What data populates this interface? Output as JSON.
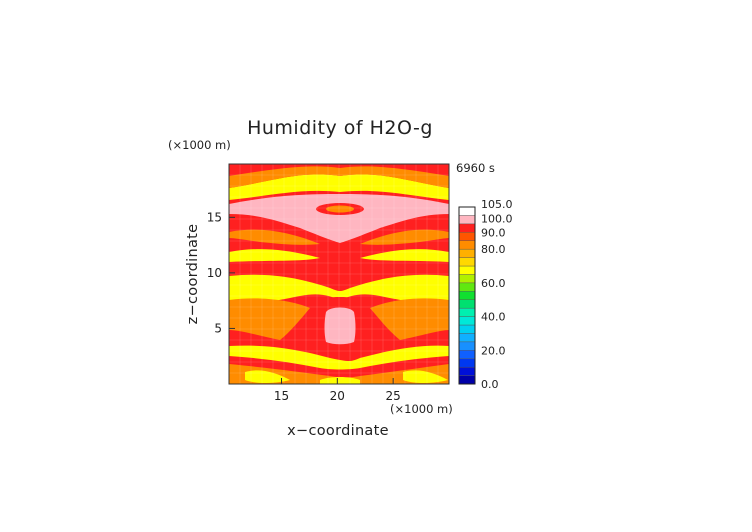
{
  "chart_data": {
    "type": "heatmap",
    "title": "Humidity of H2O-g",
    "time_label": "6960 s",
    "x_unit": "(×1000 m)",
    "z_unit": "(×1000 m)",
    "xlabel": "x−coordinate",
    "ylabel": "z−coordinate",
    "xlim": [
      10.3,
      30.0
    ],
    "ylim": [
      0.0,
      19.8
    ],
    "x_ticks": [
      15,
      20,
      25
    ],
    "x_tick_labels": [
      "15",
      "20",
      "25"
    ],
    "y_ticks": [
      5,
      10,
      15
    ],
    "y_tick_labels": [
      "5",
      "10",
      "15"
    ],
    "grid": true,
    "colorbar": {
      "range": [
        0.0,
        105.0
      ],
      "tick_values": [
        0,
        20,
        40,
        60,
        80,
        90,
        100,
        105
      ],
      "tick_labels": [
        "0.0",
        "20.0",
        "40.0",
        "60.0",
        "80.0",
        "90.0",
        "100.0",
        "105.0"
      ],
      "levels": [
        0,
        5,
        10,
        15,
        20,
        25,
        30,
        35,
        40,
        45,
        50,
        55,
        60,
        65,
        70,
        75,
        80,
        85,
        90,
        95,
        100,
        105
      ],
      "colors": [
        "#0000a8",
        "#0010d8",
        "#0038f0",
        "#1060ff",
        "#1890ff",
        "#10b0ff",
        "#00d0f0",
        "#00e8d8",
        "#00f0b0",
        "#00e070",
        "#10e030",
        "#60e810",
        "#b0f000",
        "#ffff00",
        "#ffd800",
        "#ffb000",
        "#ff8c00",
        "#ff5500",
        "#ff2020",
        "#ffb6c1",
        "#ffffff"
      ]
    },
    "series": [
      {
        "z_levels": [
          19.5,
          18.5,
          17.5,
          16.5,
          15.5,
          14.5,
          13.5,
          12.5,
          11.5,
          10.5,
          9.5,
          8.5,
          7.5,
          6.5,
          5.5,
          4.5,
          3.5,
          2.5,
          1.5,
          0.5
        ],
        "x_profile": [
          11,
          13,
          15,
          17,
          19,
          21,
          23,
          25,
          27,
          29
        ],
        "values": [
          [
            100,
            95,
            90,
            90,
            92,
            92,
            90,
            90,
            95,
            100
          ],
          [
            95,
            90,
            80,
            75,
            75,
            75,
            75,
            80,
            90,
            95
          ],
          [
            90,
            85,
            75,
            78,
            85,
            85,
            78,
            75,
            85,
            90
          ],
          [
            100,
            103,
            103,
            103,
            100,
            100,
            103,
            103,
            103,
            100
          ],
          [
            100,
            100,
            103,
            103,
            103,
            103,
            103,
            103,
            100,
            100
          ],
          [
            100,
            90,
            100,
            103,
            103,
            103,
            103,
            100,
            90,
            100
          ],
          [
            90,
            85,
            90,
            100,
            100,
            100,
            100,
            90,
            85,
            90
          ],
          [
            90,
            85,
            85,
            90,
            95,
            95,
            90,
            85,
            85,
            90
          ],
          [
            95,
            95,
            100,
            100,
            103,
            103,
            100,
            100,
            95,
            95
          ],
          [
            100,
            100,
            100,
            100,
            100,
            100,
            100,
            100,
            100,
            100
          ],
          [
            80,
            80,
            80,
            85,
            90,
            90,
            85,
            80,
            80,
            80
          ],
          [
            80,
            78,
            80,
            80,
            85,
            85,
            80,
            80,
            78,
            80
          ],
          [
            85,
            80,
            85,
            90,
            100,
            100,
            90,
            85,
            80,
            85
          ],
          [
            88,
            80,
            85,
            95,
            103,
            103,
            95,
            85,
            80,
            88
          ],
          [
            82,
            78,
            82,
            90,
            103,
            103,
            90,
            82,
            78,
            82
          ],
          [
            80,
            80,
            85,
            90,
            100,
            100,
            90,
            85,
            80,
            80
          ],
          [
            88,
            85,
            88,
            90,
            92,
            92,
            90,
            88,
            85,
            88
          ],
          [
            80,
            78,
            80,
            85,
            85,
            85,
            85,
            80,
            78,
            80
          ],
          [
            85,
            82,
            85,
            85,
            80,
            80,
            85,
            85,
            82,
            85
          ],
          [
            88,
            85,
            88,
            85,
            78,
            78,
            85,
            88,
            85,
            88
          ]
        ]
      }
    ]
  }
}
